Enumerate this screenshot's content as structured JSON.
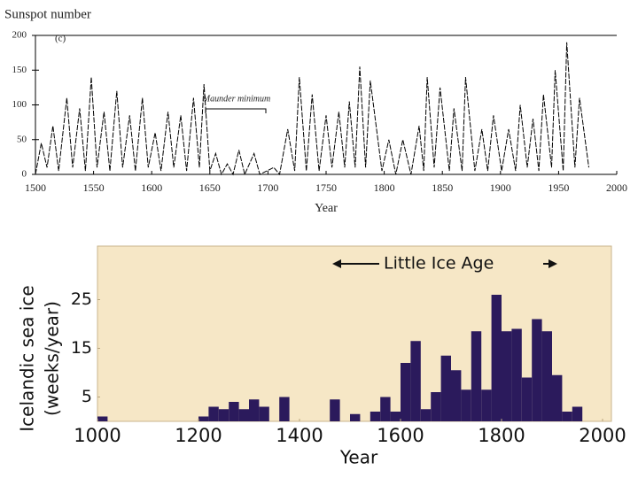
{
  "chart_data": [
    {
      "type": "line",
      "title": "Sunspot number",
      "panel_label": "(c)",
      "xlabel": "Year",
      "annotation": "Maunder minimum",
      "color": "#000000",
      "xlim": [
        1500,
        2000
      ],
      "ylim": [
        0,
        200
      ],
      "xticks": [
        1500,
        1550,
        1600,
        1650,
        1700,
        1750,
        1800,
        1850,
        1900,
        1950,
        2000
      ],
      "yticks": [
        0,
        50,
        100,
        150,
        200
      ],
      "grid": false,
      "x": [
        1500,
        1505,
        1510,
        1515,
        1520,
        1527,
        1532,
        1538,
        1543,
        1548,
        1553,
        1559,
        1564,
        1570,
        1575,
        1581,
        1586,
        1592,
        1597,
        1603,
        1608,
        1614,
        1619,
        1625,
        1630,
        1636,
        1641,
        1645,
        1650,
        1655,
        1660,
        1665,
        1670,
        1675,
        1680,
        1688,
        1693,
        1705,
        1710,
        1717,
        1723,
        1727,
        1733,
        1738,
        1744,
        1750,
        1755,
        1761,
        1766,
        1770,
        1775,
        1779,
        1784,
        1788,
        1798,
        1804,
        1810,
        1816,
        1823,
        1830,
        1834,
        1837,
        1843,
        1848,
        1856,
        1860,
        1867,
        1870,
        1878,
        1884,
        1889,
        1894,
        1901,
        1907,
        1913,
        1917,
        1923,
        1928,
        1933,
        1937,
        1944,
        1947,
        1954,
        1957,
        1964,
        1968,
        1976
      ],
      "values": [
        0,
        45,
        10,
        70,
        5,
        110,
        10,
        95,
        5,
        140,
        10,
        90,
        5,
        120,
        10,
        85,
        5,
        110,
        10,
        60,
        5,
        90,
        10,
        85,
        5,
        110,
        10,
        130,
        5,
        30,
        0,
        15,
        0,
        35,
        0,
        30,
        0,
        10,
        0,
        65,
        5,
        140,
        5,
        115,
        5,
        85,
        10,
        90,
        10,
        105,
        10,
        155,
        10,
        135,
        5,
        50,
        0,
        50,
        0,
        70,
        5,
        140,
        10,
        125,
        5,
        95,
        5,
        140,
        5,
        65,
        5,
        85,
        5,
        65,
        5,
        100,
        10,
        80,
        5,
        115,
        10,
        150,
        5,
        190,
        10,
        110,
        10
      ]
    },
    {
      "type": "histogram",
      "ylabel": [
        "Icelandic sea ice",
        "(weeks/year)"
      ],
      "xlabel": "Year",
      "annotation": "Little Ice Age",
      "color": "#2b1a5c",
      "background": "#f6e7c6",
      "xlim": [
        1000,
        2000
      ],
      "ylim": [
        0,
        36
      ],
      "xticks": [
        1000,
        1200,
        1400,
        1600,
        1800,
        2000
      ],
      "yticks": [
        5,
        15,
        25
      ],
      "grid": false,
      "bins": [
        1000,
        1020,
        1040,
        1060,
        1080,
        1100,
        1120,
        1140,
        1160,
        1180,
        1200,
        1220,
        1240,
        1260,
        1280,
        1300,
        1320,
        1340,
        1360,
        1380,
        1400,
        1420,
        1440,
        1460,
        1480,
        1500,
        1520,
        1540,
        1560,
        1580,
        1600,
        1620,
        1640,
        1660,
        1680,
        1700,
        1720,
        1740,
        1760,
        1780,
        1800,
        1820,
        1840,
        1860,
        1880,
        1900,
        1920,
        1940,
        1960,
        1980,
        2000
      ],
      "values": [
        1,
        0,
        0,
        0,
        0,
        0,
        0,
        0,
        0,
        0,
        1,
        3,
        2.5,
        4,
        2.5,
        4.5,
        3,
        0,
        5,
        0,
        0,
        0,
        0,
        4.5,
        0,
        1.5,
        0,
        2,
        5,
        2,
        12,
        16.5,
        2.5,
        6,
        13.5,
        10.5,
        6.5,
        18.5,
        6.5,
        26,
        18.5,
        19,
        9,
        21,
        18.5,
        9.5,
        2,
        3,
        0,
        0
      ]
    }
  ]
}
